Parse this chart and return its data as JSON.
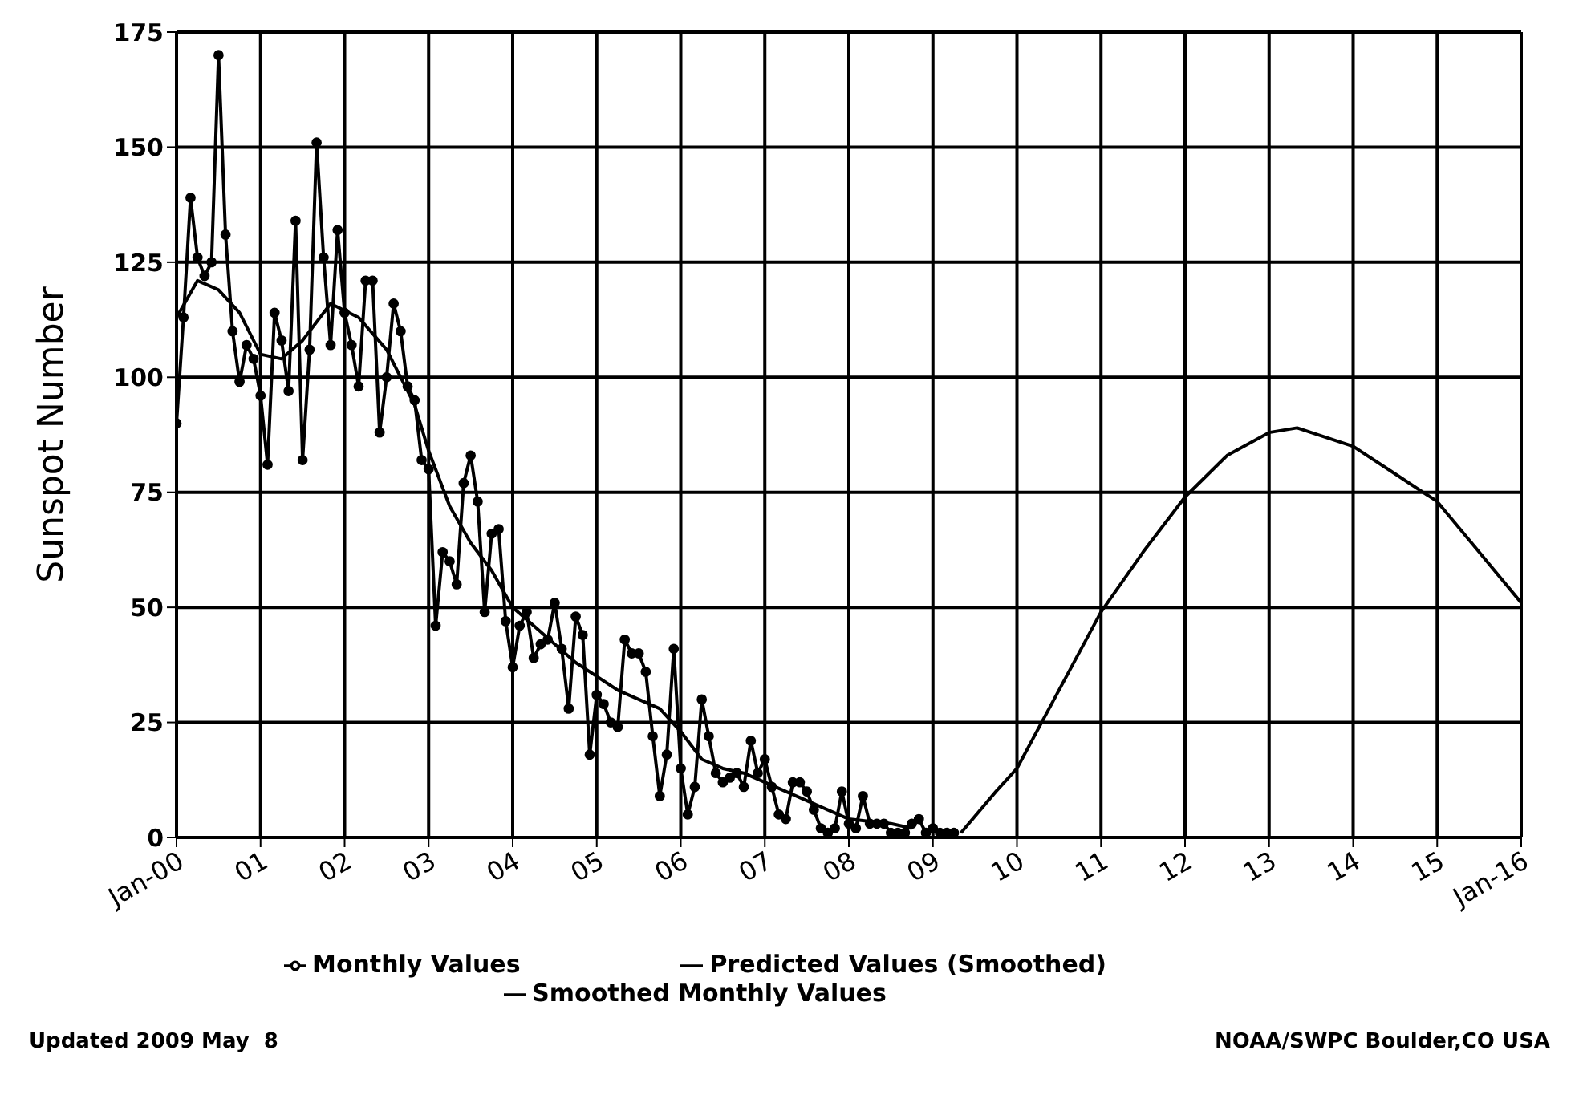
{
  "chart_data": {
    "type": "line",
    "ylabel": "Sunspot Number",
    "xlim": [
      "2000-01",
      "2016-01"
    ],
    "xticks": [
      {
        "value": "2000-01",
        "label": "Jan-00"
      },
      {
        "value": "2001-01",
        "label": "01"
      },
      {
        "value": "2002-01",
        "label": "02"
      },
      {
        "value": "2003-01",
        "label": "03"
      },
      {
        "value": "2004-01",
        "label": "04"
      },
      {
        "value": "2005-01",
        "label": "05"
      },
      {
        "value": "2006-01",
        "label": "06"
      },
      {
        "value": "2007-01",
        "label": "07"
      },
      {
        "value": "2008-01",
        "label": "08"
      },
      {
        "value": "2009-01",
        "label": "09"
      },
      {
        "value": "2010-01",
        "label": "10"
      },
      {
        "value": "2011-01",
        "label": "11"
      },
      {
        "value": "2012-01",
        "label": "12"
      },
      {
        "value": "2013-01",
        "label": "13"
      },
      {
        "value": "2014-01",
        "label": "14"
      },
      {
        "value": "2015-01",
        "label": "15"
      },
      {
        "value": "2016-01",
        "label": "Jan-16"
      }
    ],
    "ylim": [
      0,
      175
    ],
    "yticks": [
      0,
      25,
      50,
      75,
      100,
      125,
      150,
      175
    ],
    "grid": true,
    "legend": "bottom",
    "series": [
      {
        "name": "Smoothed Monthly Values",
        "color": "#000000",
        "marker": "none",
        "x": [
          "2000-01",
          "2000-04",
          "2000-07",
          "2000-10",
          "2001-01",
          "2001-04",
          "2001-07",
          "2001-11",
          "2002-03",
          "2002-07",
          "2002-11",
          "2003-01",
          "2003-04",
          "2003-07",
          "2003-10",
          "2004-01",
          "2004-04",
          "2004-07",
          "2004-10",
          "2005-01",
          "2005-04",
          "2005-07",
          "2005-10",
          "2006-01",
          "2006-04",
          "2006-07",
          "2006-10",
          "2007-01",
          "2007-04",
          "2007-07",
          "2007-10",
          "2008-01",
          "2008-04",
          "2008-07",
          "2008-10"
        ],
        "values": [
          113,
          121,
          119,
          114,
          105,
          104,
          108,
          116,
          113,
          106,
          94,
          84,
          72,
          64,
          58,
          50,
          46,
          42,
          38,
          35,
          32,
          30,
          28,
          23,
          17,
          15,
          14,
          12,
          10,
          8,
          6,
          4,
          3.5,
          3,
          2
        ]
      },
      {
        "name": "Monthly Values",
        "color": "#000000",
        "marker": "circle",
        "x": [
          "2000-01",
          "2000-02",
          "2000-03",
          "2000-04",
          "2000-05",
          "2000-06",
          "2000-07",
          "2000-08",
          "2000-09",
          "2000-10",
          "2000-11",
          "2000-12",
          "2001-01",
          "2001-02",
          "2001-03",
          "2001-04",
          "2001-05",
          "2001-06",
          "2001-07",
          "2001-08",
          "2001-09",
          "2001-10",
          "2001-11",
          "2001-12",
          "2002-01",
          "2002-02",
          "2002-03",
          "2002-04",
          "2002-05",
          "2002-06",
          "2002-07",
          "2002-08",
          "2002-09",
          "2002-10",
          "2002-11",
          "2002-12",
          "2003-01",
          "2003-02",
          "2003-03",
          "2003-04",
          "2003-05",
          "2003-06",
          "2003-07",
          "2003-08",
          "2003-09",
          "2003-10",
          "2003-11",
          "2003-12",
          "2004-01",
          "2004-02",
          "2004-03",
          "2004-04",
          "2004-05",
          "2004-06",
          "2004-07",
          "2004-08",
          "2004-09",
          "2004-10",
          "2004-11",
          "2004-12",
          "2005-01",
          "2005-02",
          "2005-03",
          "2005-04",
          "2005-05",
          "2005-06",
          "2005-07",
          "2005-08",
          "2005-09",
          "2005-10",
          "2005-11",
          "2005-12",
          "2006-01",
          "2006-02",
          "2006-03",
          "2006-04",
          "2006-05",
          "2006-06",
          "2006-07",
          "2006-08",
          "2006-09",
          "2006-10",
          "2006-11",
          "2006-12",
          "2007-01",
          "2007-02",
          "2007-03",
          "2007-04",
          "2007-05",
          "2007-06",
          "2007-07",
          "2007-08",
          "2007-09",
          "2007-10",
          "2007-11",
          "2007-12",
          "2008-01",
          "2008-02",
          "2008-03",
          "2008-04",
          "2008-05",
          "2008-06",
          "2008-07",
          "2008-08",
          "2008-09",
          "2008-10",
          "2008-11",
          "2008-12",
          "2009-01",
          "2009-02",
          "2009-03",
          "2009-04"
        ],
        "values": [
          90,
          113,
          139,
          126,
          122,
          125,
          170,
          131,
          110,
          99,
          107,
          104,
          96,
          81,
          114,
          108,
          97,
          134,
          82,
          106,
          151,
          126,
          107,
          132,
          114,
          107,
          98,
          121,
          121,
          88,
          100,
          116,
          110,
          98,
          95,
          82,
          80,
          46,
          62,
          60,
          55,
          77,
          83,
          73,
          49,
          66,
          67,
          47,
          37,
          46,
          49,
          39,
          42,
          43,
          51,
          41,
          28,
          48,
          44,
          18,
          31,
          29,
          25,
          24,
          43,
          40,
          40,
          36,
          22,
          9,
          18,
          41,
          15,
          5,
          11,
          30,
          22,
          14,
          12,
          13,
          14,
          11,
          21,
          14,
          17,
          11,
          5,
          4,
          12,
          12,
          10,
          6,
          2,
          1,
          2,
          10,
          3,
          2,
          9,
          3,
          3,
          3,
          1,
          1,
          1,
          3,
          4,
          1,
          2,
          1,
          1,
          1
        ]
      },
      {
        "name": "Predicted Values (Smoothed)",
        "color": "#000000",
        "marker": "none",
        "x": [
          "2009-05",
          "2009-10",
          "2010-01",
          "2010-07",
          "2011-01",
          "2011-07",
          "2012-01",
          "2012-07",
          "2013-01",
          "2013-05",
          "2014-01",
          "2014-07",
          "2015-01",
          "2015-07",
          "2016-01"
        ],
        "values": [
          1,
          10,
          15,
          32,
          49,
          62,
          74,
          83,
          88,
          89,
          85,
          79,
          73,
          62,
          51
        ]
      }
    ],
    "annotations": [
      "Updated 2009 May  8",
      "NOAA/SWPC Boulder,CO USA"
    ]
  }
}
